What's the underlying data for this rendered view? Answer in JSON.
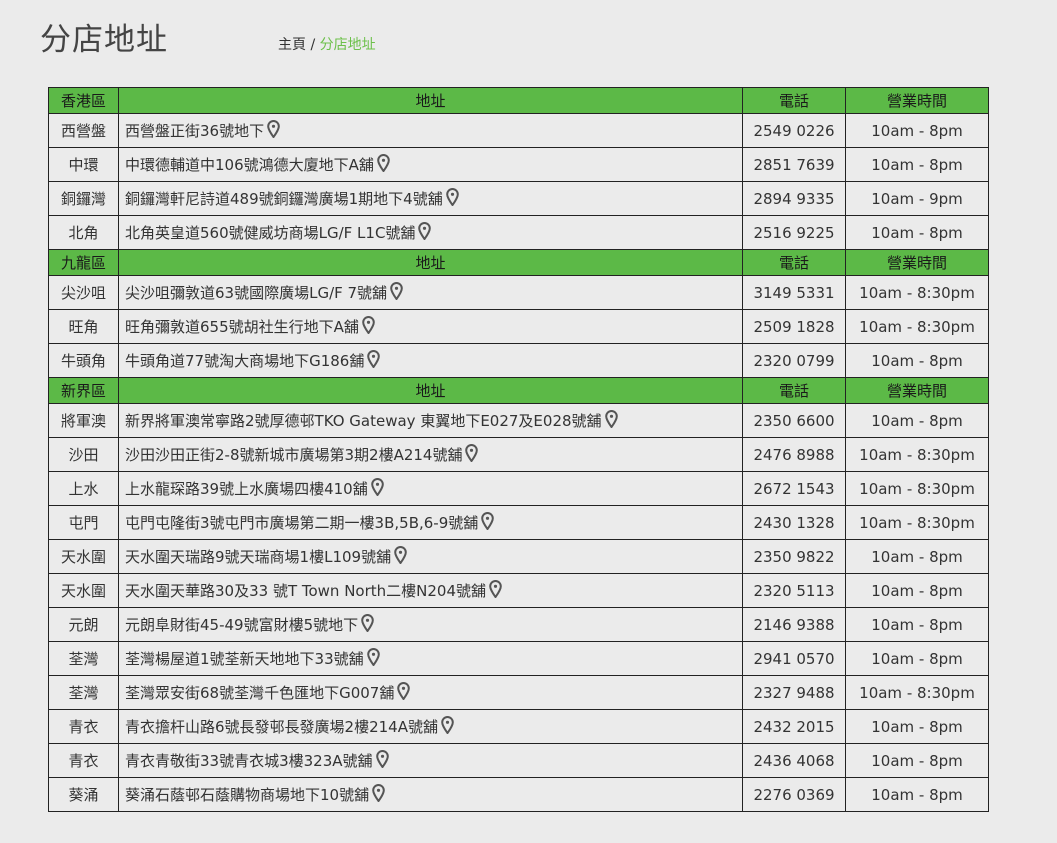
{
  "page": {
    "title": "分店地址"
  },
  "breadcrumb": {
    "home": "主頁",
    "separator": "/",
    "current": "分店地址"
  },
  "colors": {
    "header_bg": "#5cb947",
    "background": "#ebebeb",
    "breadcrumb_active": "#6cc04a"
  },
  "icons": {
    "location": "map-pin-icon"
  },
  "sections": [
    {
      "region": "香港區",
      "address_header": "地址",
      "phone_header": "電話",
      "hours_header": "營業時間",
      "rows": [
        {
          "district": "西營盤",
          "address": "西營盤正街36號地下",
          "phone": "2549 0226",
          "hours": "10am - 8pm"
        },
        {
          "district": "中環",
          "address": "中環德輔道中106號鴻德大廈地下A舖",
          "phone": "2851 7639",
          "hours": "10am - 8pm"
        },
        {
          "district": "銅鑼灣",
          "address": "銅鑼灣軒尼詩道489號銅鑼灣廣場1期地下4號舖",
          "phone": "2894 9335",
          "hours": "10am - 9pm"
        },
        {
          "district": "北角",
          "address": "北角英皇道560號健威坊商場LG/F L1C號舖",
          "phone": "2516 9225",
          "hours": "10am - 8pm"
        }
      ]
    },
    {
      "region": "九龍區",
      "address_header": "地址",
      "phone_header": "電話",
      "hours_header": "營業時間",
      "rows": [
        {
          "district": "尖沙咀",
          "address": "尖沙咀彌敦道63號國際廣場LG/F 7號舖",
          "phone": "3149 5331",
          "hours": "10am - 8:30pm"
        },
        {
          "district": "旺角",
          "address": "旺角彌敦道655號胡社生行地下A舖",
          "phone": "2509 1828",
          "hours": "10am - 8:30pm"
        },
        {
          "district": "牛頭角",
          "address": "牛頭角道77號淘大商場地下G186舖",
          "phone": "2320 0799",
          "hours": "10am - 8pm"
        }
      ]
    },
    {
      "region": "新界區",
      "address_header": "地址",
      "phone_header": "電話",
      "hours_header": "營業時間",
      "rows": [
        {
          "district": "將軍澳",
          "address": "新界將軍澳常寧路2號厚德邨TKO Gateway 東翼地下E027及E028號舖",
          "phone": "2350 6600",
          "hours": "10am - 8pm"
        },
        {
          "district": "沙田",
          "address": "沙田沙田正街2-8號新城市廣場第3期2樓A214號舖",
          "phone": "2476 8988",
          "hours": "10am - 8:30pm"
        },
        {
          "district": "上水",
          "address": "上水龍琛路39號上水廣場四樓410舖",
          "phone": "2672 1543",
          "hours": "10am - 8:30pm"
        },
        {
          "district": "屯門",
          "address": "屯門屯隆街3號屯門市廣場第二期一樓3B,5B,6-9號舖",
          "phone": "2430 1328",
          "hours": "10am - 8:30pm"
        },
        {
          "district": "天水圍",
          "address": "天水圍天瑞路9號天瑞商場1樓L109號舖",
          "phone": "2350 9822",
          "hours": "10am - 8pm"
        },
        {
          "district": "天水圍",
          "address": "天水圍天華路30及33 號T Town North二樓N204號舖",
          "phone": "2320 5113",
          "hours": "10am - 8pm"
        },
        {
          "district": "元朗",
          "address": "元朗阜財街45-49號富財樓5號地下",
          "phone": "2146 9388",
          "hours": "10am - 8pm"
        },
        {
          "district": "荃灣",
          "address": "荃灣楊屋道1號荃新天地地下33號舖",
          "phone": "2941 0570",
          "hours": "10am - 8pm"
        },
        {
          "district": "荃灣",
          "address": "荃灣眾安街68號荃灣千色匯地下G007舖",
          "phone": "2327 9488",
          "hours": "10am - 8:30pm"
        },
        {
          "district": "青衣",
          "address": "青衣擔杆山路6號長發邨長發廣場2樓214A號舖",
          "phone": "2432 2015",
          "hours": "10am - 8pm"
        },
        {
          "district": "青衣",
          "address": "青衣青敬街33號青衣城3樓323A號舖",
          "phone": "2436 4068",
          "hours": "10am - 8pm"
        },
        {
          "district": "葵涌",
          "address": "葵涌石蔭邨石蔭購物商場地下10號舖",
          "phone": "2276 0369",
          "hours": "10am - 8pm"
        }
      ]
    }
  ]
}
